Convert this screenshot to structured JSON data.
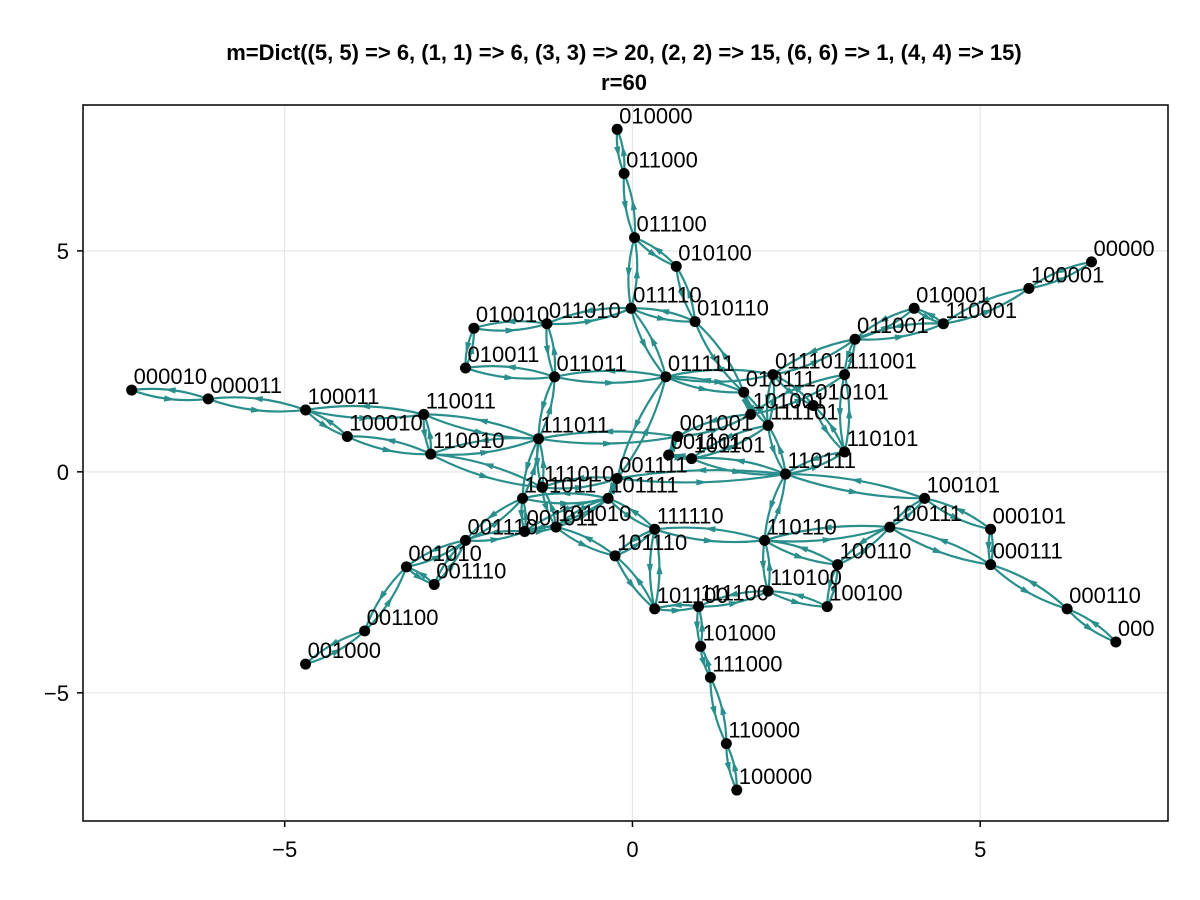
{
  "title": {
    "line1": "m=Dict((5, 5) => 6, (1, 1) => 6, (3, 3) => 20, (2, 2) => 15, (6, 6) => 1, (4, 4) => 15)",
    "line2": "r=60"
  },
  "colors": {
    "edge": "#2a8f8c",
    "node": "#000000",
    "grid": "#e6e6e6"
  },
  "axes": {
    "xlim": [
      -7.9,
      7.7
    ],
    "ylim": [
      -7.9,
      8.3
    ],
    "xticks": [
      {
        "v": -5,
        "label": "−5"
      },
      {
        "v": 0,
        "label": "0"
      },
      {
        "v": 5,
        "label": "5"
      }
    ],
    "yticks": [
      {
        "v": -5,
        "label": "−5"
      },
      {
        "v": 0,
        "label": "0"
      },
      {
        "v": 5,
        "label": "5"
      }
    ],
    "grid": true
  },
  "chart_data": {
    "type": "graph",
    "directed": true,
    "nodes": [
      {
        "id": "010000",
        "x": -0.22,
        "y": 7.75
      },
      {
        "id": "011000",
        "x": -0.12,
        "y": 6.75
      },
      {
        "id": "011100",
        "x": 0.03,
        "y": 5.3
      },
      {
        "id": "010100",
        "x": 0.63,
        "y": 4.65
      },
      {
        "id": "011110",
        "x": -0.02,
        "y": 3.7
      },
      {
        "id": "010110",
        "x": 0.9,
        "y": 3.4
      },
      {
        "id": "010010",
        "x": -2.28,
        "y": 3.25
      },
      {
        "id": "011010",
        "x": -1.23,
        "y": 3.35
      },
      {
        "id": "010011",
        "x": -2.4,
        "y": 2.35
      },
      {
        "id": "011011",
        "x": -1.12,
        "y": 2.15
      },
      {
        "id": "011111",
        "x": 0.48,
        "y": 2.15
      },
      {
        "id": "011101",
        "x": 2.02,
        "y": 2.2
      },
      {
        "id": "111001",
        "x": 3.05,
        "y": 2.2
      },
      {
        "id": "011001",
        "x": 3.2,
        "y": 3.0
      },
      {
        "id": "010001",
        "x": 4.05,
        "y": 3.7
      },
      {
        "id": "110001",
        "x": 4.47,
        "y": 3.35
      },
      {
        "id": "100001",
        "x": 5.7,
        "y": 4.15
      },
      {
        "id": "00000",
        "x": 6.6,
        "y": 4.75
      },
      {
        "id": "000010",
        "x": -7.2,
        "y": 1.85
      },
      {
        "id": "000011",
        "x": -6.1,
        "y": 1.65
      },
      {
        "id": "100011",
        "x": -4.7,
        "y": 1.4
      },
      {
        "id": "110011",
        "x": -3.0,
        "y": 1.3
      },
      {
        "id": "100010",
        "x": -4.1,
        "y": 0.8
      },
      {
        "id": "110010",
        "x": -2.9,
        "y": 0.4
      },
      {
        "id": "111011",
        "x": -1.35,
        "y": 0.75
      },
      {
        "id": "010111",
        "x": 1.6,
        "y": 1.8
      },
      {
        "id": "010101",
        "x": 2.6,
        "y": 1.5
      },
      {
        "id": "101001",
        "x": 1.7,
        "y": 1.3
      },
      {
        "id": "111101",
        "x": 1.95,
        "y": 1.05
      },
      {
        "id": "001001",
        "x": 0.65,
        "y": 0.8
      },
      {
        "id": "110101",
        "x": 3.05,
        "y": 0.45
      },
      {
        "id": "001101",
        "x": 0.52,
        "y": 0.38
      },
      {
        "id": "101101",
        "x": 0.85,
        "y": 0.3
      },
      {
        "id": "110111",
        "x": 2.2,
        "y": -0.05
      },
      {
        "id": "111010",
        "x": -1.3,
        "y": -0.35
      },
      {
        "id": "001111",
        "x": -0.22,
        "y": -0.15
      },
      {
        "id": "101011",
        "x": -1.58,
        "y": -0.6
      },
      {
        "id": "101111",
        "x": -0.35,
        "y": -0.6
      },
      {
        "id": "001011",
        "x": -1.55,
        "y": -1.35
      },
      {
        "id": "101010",
        "x": -1.1,
        "y": -1.25
      },
      {
        "id": "001110",
        "x": -2.4,
        "y": -1.55
      },
      {
        "id": "001010",
        "x": -3.25,
        "y": -2.15
      },
      {
        "id": "001100",
        "x": -3.85,
        "y": -3.6
      },
      {
        "id": "001000",
        "x": -4.7,
        "y": -4.35
      },
      {
        "id": "111110",
        "x": 0.32,
        "y": -1.3
      },
      {
        "id": "101110",
        "x": -0.25,
        "y": -1.9
      },
      {
        "id": "110110",
        "x": 1.9,
        "y": -1.55
      },
      {
        "id": "100101",
        "x": 4.2,
        "y": -0.6
      },
      {
        "id": "100111",
        "x": 3.7,
        "y": -1.25
      },
      {
        "id": "000101",
        "x": 5.15,
        "y": -1.3
      },
      {
        "id": "100110",
        "x": 2.95,
        "y": -2.1
      },
      {
        "id": "000111",
        "x": 5.15,
        "y": -2.1
      },
      {
        "id": "110100",
        "x": 1.95,
        "y": -2.7
      },
      {
        "id": "100100",
        "x": 2.8,
        "y": -3.05
      },
      {
        "id": "101100",
        "x": 0.32,
        "y": -3.1
      },
      {
        "id": "111100",
        "x": 0.95,
        "y": -3.05
      },
      {
        "id": "101000",
        "x": 0.98,
        "y": -3.95
      },
      {
        "id": "111000",
        "x": 1.12,
        "y": -4.65
      },
      {
        "id": "110000",
        "x": 1.35,
        "y": -6.15
      },
      {
        "id": "100000",
        "x": 1.5,
        "y": -7.2
      },
      {
        "id": "000110",
        "x": 6.25,
        "y": -3.1
      },
      {
        "id": "000",
        "x": 6.95,
        "y": -3.85
      },
      {
        "id": "001010b",
        "x": -2.85,
        "y": -2.55
      }
    ],
    "node_labels": {
      "010000": "010000",
      "011000": "011000",
      "011100": "011100",
      "010100": "010100",
      "011110": "011110",
      "010110": "010110",
      "010010": "010010",
      "011010": "011010",
      "010011": "010011",
      "011011": "011011",
      "011111": "011111",
      "011101": "011101",
      "111001": "111001",
      "011001": "011001",
      "010001": "010001",
      "110001": "110001",
      "100001": "100001",
      "00000": "00000",
      "000010": "000010",
      "000011": "000011",
      "100011": "100011",
      "110011": "110011",
      "100010": "100010",
      "110010": "110010",
      "111011": "111011",
      "010111": "010111",
      "010101": "010101",
      "101001": "101001",
      "111101": "111101",
      "001001": "001001",
      "110101": "110101",
      "001101": "001101",
      "101101": "101101",
      "110111": "110111",
      "111010": "111010",
      "001111": "001111",
      "101011": "101011",
      "101111": "101111",
      "001011": "001011",
      "101010": "101010",
      "001110": "001110",
      "001010": "001010",
      "001100": "001100",
      "001000": "001000",
      "111110": "111110",
      "101110": "101110",
      "110110": "110110",
      "100101": "100101",
      "100111": "100111",
      "000101": "000101",
      "100110": "100110",
      "000111": "000111",
      "110100": "110100",
      "100100": "100100",
      "101100": "101100",
      "111100": "111100",
      "101000": "101000",
      "111000": "111000",
      "110000": "110000",
      "100000": "100000",
      "000110": "000110",
      "000": "000",
      "001010b": "001110"
    },
    "edges": [
      [
        "010000",
        "011000"
      ],
      [
        "011000",
        "011100"
      ],
      [
        "011100",
        "010100"
      ],
      [
        "011100",
        "011110"
      ],
      [
        "010100",
        "010110"
      ],
      [
        "011110",
        "010110"
      ],
      [
        "011110",
        "011010"
      ],
      [
        "011110",
        "011111"
      ],
      [
        "010110",
        "010111"
      ],
      [
        "010010",
        "011010"
      ],
      [
        "010010",
        "010011"
      ],
      [
        "011010",
        "011011"
      ],
      [
        "010011",
        "011011"
      ],
      [
        "011011",
        "011111"
      ],
      [
        "011011",
        "111011"
      ],
      [
        "011111",
        "011101"
      ],
      [
        "011111",
        "010111"
      ],
      [
        "011111",
        "001111"
      ],
      [
        "011111",
        "111111x"
      ],
      [
        "011101",
        "111101"
      ],
      [
        "011101",
        "011001"
      ],
      [
        "011101",
        "010101"
      ],
      [
        "111001",
        "011001"
      ],
      [
        "111001",
        "101001"
      ],
      [
        "111001",
        "110101"
      ],
      [
        "011001",
        "010001"
      ],
      [
        "010001",
        "110001"
      ],
      [
        "110001",
        "100001"
      ],
      [
        "100001",
        "00000"
      ],
      [
        "011001",
        "110001"
      ],
      [
        "000010",
        "000011"
      ],
      [
        "000011",
        "100011"
      ],
      [
        "100011",
        "110011"
      ],
      [
        "100011",
        "100010"
      ],
      [
        "100010",
        "110010"
      ],
      [
        "110011",
        "110010"
      ],
      [
        "110011",
        "111011"
      ],
      [
        "110010",
        "111011"
      ],
      [
        "110010",
        "111010"
      ],
      [
        "111011",
        "101011"
      ],
      [
        "111011",
        "111010"
      ],
      [
        "111011",
        "001001"
      ],
      [
        "010111",
        "101001"
      ],
      [
        "010111",
        "111101"
      ],
      [
        "010101",
        "110101"
      ],
      [
        "101001",
        "001001"
      ],
      [
        "111101",
        "110111"
      ],
      [
        "111101",
        "101101"
      ],
      [
        "001001",
        "001101"
      ],
      [
        "001101",
        "101101"
      ],
      [
        "101101",
        "110111"
      ],
      [
        "110101",
        "110111"
      ],
      [
        "110111",
        "100101"
      ],
      [
        "110111",
        "110110"
      ],
      [
        "110111",
        "001111"
      ],
      [
        "100101",
        "000101"
      ],
      [
        "100101",
        "100111"
      ],
      [
        "000101",
        "000111"
      ],
      [
        "100111",
        "000111"
      ],
      [
        "100111",
        "110110"
      ],
      [
        "100111",
        "100110"
      ],
      [
        "000111",
        "000110"
      ],
      [
        "000110",
        "000"
      ],
      [
        "111010",
        "101010"
      ],
      [
        "111010",
        "001111"
      ],
      [
        "101011",
        "001011"
      ],
      [
        "101011",
        "101111"
      ],
      [
        "101011",
        "001110"
      ],
      [
        "101111",
        "001111"
      ],
      [
        "101111",
        "111110"
      ],
      [
        "101111",
        "101010"
      ],
      [
        "001011",
        "101010"
      ],
      [
        "001011",
        "001110"
      ],
      [
        "001110",
        "001010"
      ],
      [
        "001110",
        "001010b"
      ],
      [
        "001010",
        "001010b"
      ],
      [
        "001010",
        "001100"
      ],
      [
        "001100",
        "001000"
      ],
      [
        "111110",
        "101110"
      ],
      [
        "111110",
        "110110"
      ],
      [
        "111110",
        "101100"
      ],
      [
        "101110",
        "101100"
      ],
      [
        "101110",
        "101010"
      ],
      [
        "110110",
        "110100"
      ],
      [
        "110110",
        "100110"
      ],
      [
        "100110",
        "100100"
      ],
      [
        "110100",
        "100100"
      ],
      [
        "110100",
        "111100"
      ],
      [
        "101100",
        "111100"
      ],
      [
        "111100",
        "101000"
      ],
      [
        "101000",
        "111000"
      ],
      [
        "111000",
        "110000"
      ],
      [
        "110000",
        "100000"
      ],
      [
        "001011",
        "101111"
      ]
    ]
  }
}
